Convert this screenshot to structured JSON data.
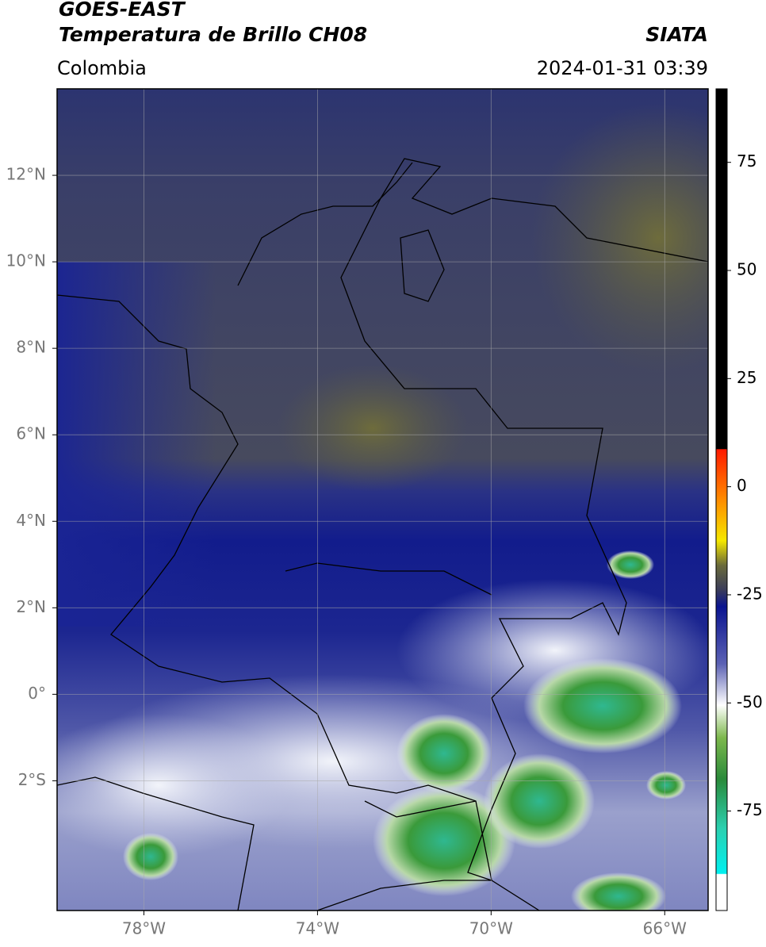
{
  "header": {
    "satellite": "GOES-EAST",
    "product": "Temperatura de Brillo CH08",
    "region": "Colombia",
    "source": "SIATA",
    "timestamp": "2024-01-31 03:39"
  },
  "map": {
    "lon_range": [
      -80,
      -65
    ],
    "lat_range": [
      -5,
      14
    ],
    "lon_ticks": [
      {
        "value": -78,
        "label": "78°W"
      },
      {
        "value": -74,
        "label": "74°W"
      },
      {
        "value": -70,
        "label": "70°W"
      },
      {
        "value": -66,
        "label": "66°W"
      }
    ],
    "lat_ticks": [
      {
        "value": 12,
        "label": "12°N"
      },
      {
        "value": 10,
        "label": "10°N"
      },
      {
        "value": 8,
        "label": "8°N"
      },
      {
        "value": 6,
        "label": "6°N"
      },
      {
        "value": 4,
        "label": "4°N"
      },
      {
        "value": 2,
        "label": "2°N"
      },
      {
        "value": 0,
        "label": "0°"
      },
      {
        "value": -2,
        "label": "2°S"
      }
    ],
    "grid": true
  },
  "colorbar": {
    "range": [
      -98,
      92
    ],
    "ticks": [
      75,
      50,
      25,
      0,
      -25,
      -50,
      -75
    ]
  }
}
